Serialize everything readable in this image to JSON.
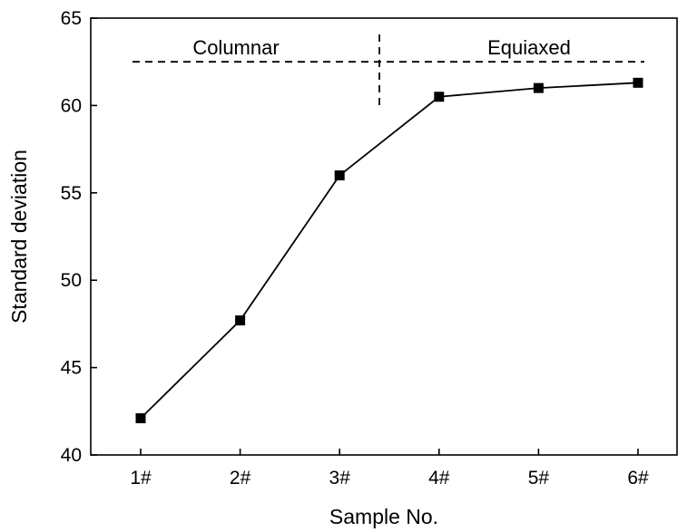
{
  "chart_data": {
    "type": "line",
    "title": "",
    "xlabel": "Sample No.",
    "ylabel": "Standard deviation",
    "categories": [
      "1#",
      "2#",
      "3#",
      "4#",
      "5#",
      "6#"
    ],
    "series": [
      {
        "values": [
          42.1,
          47.7,
          56.0,
          60.5,
          61.0,
          61.3
        ]
      }
    ],
    "ylim": [
      40,
      65
    ],
    "yticks": [
      40,
      45,
      50,
      55,
      60,
      65
    ],
    "marker": "square",
    "grid": false,
    "annotations": {
      "regions": [
        {
          "label": "Columnar",
          "x_from": "1#",
          "x_to": "boundary"
        },
        {
          "label": "Equiaxed",
          "x_from": "boundary",
          "x_to": "6#"
        }
      ],
      "boundary_between": [
        "3#",
        "4#"
      ],
      "boundary_x": 3.4,
      "dashed_level": 62.5
    },
    "colors": {
      "line": "#000000",
      "marker": "#000000",
      "axes": "#000000"
    }
  }
}
